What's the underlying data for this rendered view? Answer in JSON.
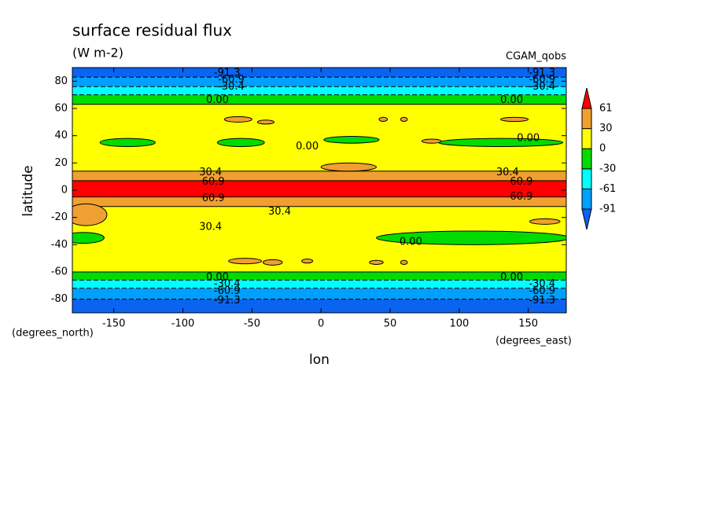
{
  "chart_data": {
    "type": "contour",
    "title": "surface residual flux",
    "subtitle": "(W m-2)",
    "source_label": "CGAM_qobs",
    "x_label": "lon",
    "y_label": "latitude",
    "x_units": "(degrees_east)",
    "y_units": "(degrees_north)",
    "xlim": [
      -180,
      177.5
    ],
    "ylim": [
      -90,
      90
    ],
    "xticks": [
      -150,
      -100,
      -50,
      0,
      50,
      100,
      150
    ],
    "yticks": [
      -80,
      -60,
      -40,
      -20,
      0,
      20,
      40,
      60,
      80
    ],
    "levels": [
      {
        "value": -91.3,
        "label": "-91"
      },
      {
        "value": -60.9,
        "label": "-61"
      },
      {
        "value": -30.4,
        "label": "-30"
      },
      {
        "value": 0,
        "label": "0"
      },
      {
        "value": 30.4,
        "label": "30"
      },
      {
        "value": 60.9,
        "label": "61"
      }
    ],
    "colors": [
      "#0a64f0",
      "#00a0ff",
      "#00ffff",
      "#00dc00",
      "#ffff00",
      "#f0a030",
      "#ff0000"
    ],
    "zonal_bands": {
      "lat_edges": [
        90,
        83,
        76,
        70,
        63,
        14,
        7,
        -5,
        -12,
        -60,
        -66,
        -72,
        -80,
        -90
      ],
      "values": [
        -100,
        -75,
        -45,
        -15,
        15,
        45,
        75,
        45,
        15,
        -15,
        -45,
        -75,
        -100
      ]
    },
    "patches": [
      {
        "lon": -140,
        "lat": 35,
        "width": 40,
        "height": 6,
        "value": -15
      },
      {
        "lon": -58,
        "lat": 35,
        "width": 34,
        "height": 6,
        "value": -15
      },
      {
        "lon": 22,
        "lat": 37,
        "width": 40,
        "height": 5,
        "value": -15
      },
      {
        "lon": 130,
        "lat": 35,
        "width": 90,
        "height": 6,
        "value": -15
      },
      {
        "lon": -172,
        "lat": -35,
        "width": 30,
        "height": 8,
        "value": -15
      },
      {
        "lon": 110,
        "lat": -35,
        "width": 140,
        "height": 10,
        "value": -15
      },
      {
        "lon": -170,
        "lat": -18,
        "width": 30,
        "height": 16,
        "value": 40
      },
      {
        "lon": -60,
        "lat": 52,
        "width": 20,
        "height": 4,
        "value": 40
      },
      {
        "lon": -40,
        "lat": 50,
        "width": 12,
        "height": 3,
        "value": 40
      },
      {
        "lon": 45,
        "lat": 52,
        "width": 6,
        "height": 3,
        "value": 40
      },
      {
        "lon": 60,
        "lat": 52,
        "width": 5,
        "height": 3,
        "value": 40
      },
      {
        "lon": 80,
        "lat": 36,
        "width": 14,
        "height": 3,
        "value": 40
      },
      {
        "lon": 140,
        "lat": 52,
        "width": 20,
        "height": 3,
        "value": 40
      },
      {
        "lon": 20,
        "lat": 17,
        "width": 40,
        "height": 6,
        "value": 40
      },
      {
        "lon": -55,
        "lat": -52,
        "width": 24,
        "height": 4,
        "value": 40
      },
      {
        "lon": -35,
        "lat": -53,
        "width": 14,
        "height": 4,
        "value": 40
      },
      {
        "lon": -10,
        "lat": -52,
        "width": 8,
        "height": 3,
        "value": 40
      },
      {
        "lon": 40,
        "lat": -53,
        "width": 10,
        "height": 3,
        "value": 40
      },
      {
        "lon": 60,
        "lat": -53,
        "width": 5,
        "height": 3,
        "value": 40
      },
      {
        "lon": 162,
        "lat": -23,
        "width": 22,
        "height": 4,
        "value": 40
      }
    ],
    "contour_labels": [
      {
        "lon": -68,
        "lat": 86,
        "value": -91.3
      },
      {
        "lon": -65,
        "lat": 81,
        "value": -60.9
      },
      {
        "lon": -65,
        "lat": 76,
        "value": -30.4
      },
      {
        "lon": -75,
        "lat": 66,
        "value": 0,
        "label": "0.00"
      },
      {
        "lon": -80,
        "lat": 13,
        "value": 30.4
      },
      {
        "lon": -78,
        "lat": 6,
        "value": 60.9
      },
      {
        "lon": -78,
        "lat": -6,
        "value": 60.9
      },
      {
        "lon": -30,
        "lat": -16,
        "value": 30.4
      },
      {
        "lon": -80,
        "lat": -27,
        "value": 30.4
      },
      {
        "lon": -10,
        "lat": 32,
        "value": 0,
        "label": "0.00"
      },
      {
        "lon": 65,
        "lat": -38,
        "value": 0,
        "label": "0.00"
      },
      {
        "lon": -75,
        "lat": -64,
        "value": 0,
        "label": "0.00"
      },
      {
        "lon": -68,
        "lat": -69,
        "value": -30.4
      },
      {
        "lon": -68,
        "lat": -74,
        "value": -60.9
      },
      {
        "lon": -68,
        "lat": -81,
        "value": -91.3
      },
      {
        "lon": 160,
        "lat": 86,
        "value": -91.3
      },
      {
        "lon": 160,
        "lat": 81,
        "value": -60.9
      },
      {
        "lon": 160,
        "lat": 76,
        "value": -30.4
      },
      {
        "lon": 138,
        "lat": 66,
        "value": 0,
        "label": "0.00"
      },
      {
        "lon": 150,
        "lat": 38,
        "value": 0,
        "label": "0.00"
      },
      {
        "lon": 135,
        "lat": 13,
        "value": 30.4
      },
      {
        "lon": 145,
        "lat": 6,
        "value": 60.9
      },
      {
        "lon": 145,
        "lat": -5,
        "value": 60.9
      },
      {
        "lon": 138,
        "lat": -64,
        "value": 0,
        "label": "0.00"
      },
      {
        "lon": 160,
        "lat": -69,
        "value": -30.4
      },
      {
        "lon": 160,
        "lat": -74,
        "value": -60.9
      },
      {
        "lon": 160,
        "lat": -81,
        "value": -91.3
      }
    ]
  }
}
